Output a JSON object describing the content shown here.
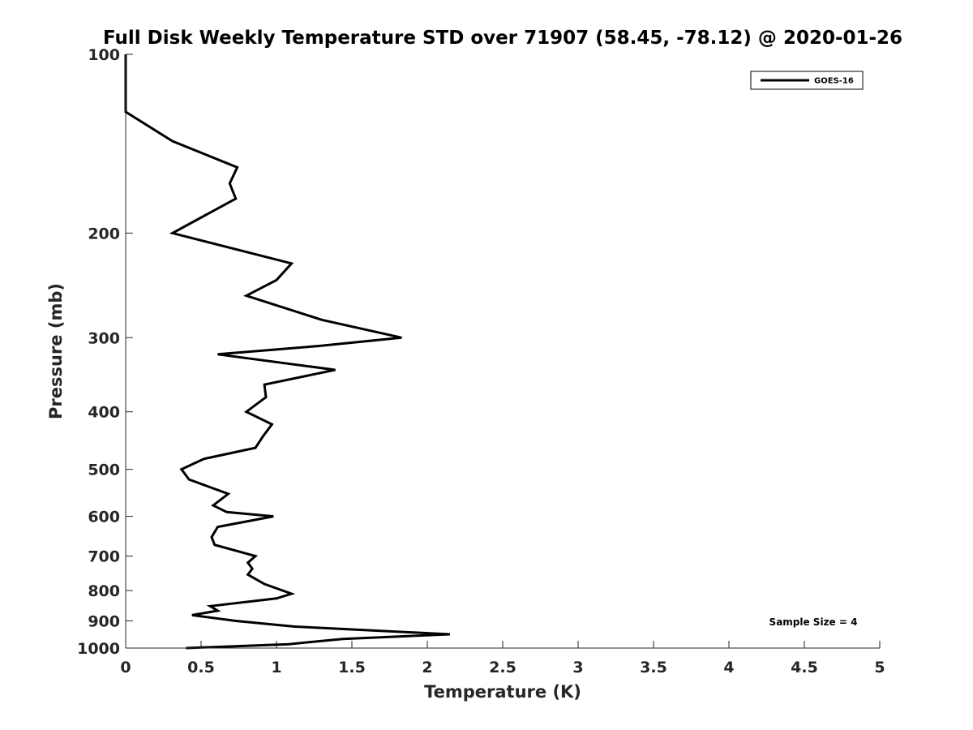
{
  "chart_data": {
    "type": "line",
    "title": "Full Disk Weekly Temperature STD over 71907 (58.45, -78.12) @ 2020-01-26",
    "xlabel": "Temperature (K)",
    "ylabel": "Pressure (mb)",
    "xlim": [
      0,
      5
    ],
    "ylim": [
      100,
      1000
    ],
    "y_scale": "log",
    "y_reversed": true,
    "x_ticks": [
      0,
      0.5,
      1,
      1.5,
      2,
      2.5,
      3,
      3.5,
      4,
      4.5,
      5
    ],
    "x_tick_labels": [
      "0",
      "0.5",
      "1",
      "1.5",
      "2",
      "2.5",
      "3",
      "3.5",
      "4",
      "4.5",
      "5"
    ],
    "y_ticks": [
      100,
      200,
      300,
      400,
      500,
      600,
      700,
      800,
      900,
      1000
    ],
    "y_tick_labels": [
      "100",
      "200",
      "300",
      "400",
      "500",
      "600",
      "700",
      "800",
      "900",
      "1000"
    ],
    "grid": false,
    "legend_position": "top-right",
    "series": [
      {
        "name": "GOES-16",
        "color": "#000000",
        "x": [
          0.0,
          0.0,
          0.0,
          0.31,
          0.74,
          0.69,
          0.73,
          0.31,
          1.1,
          1.0,
          0.8,
          1.3,
          1.83,
          1.27,
          0.61,
          1.39,
          0.92,
          0.93,
          0.8,
          0.97,
          0.91,
          0.86,
          0.52,
          0.37,
          0.42,
          0.68,
          0.58,
          0.67,
          0.98,
          0.61,
          0.57,
          0.59,
          0.86,
          0.81,
          0.84,
          0.81,
          0.92,
          1.1,
          1.0,
          0.56,
          0.61,
          0.44,
          0.73,
          1.12,
          2.15,
          1.44,
          1.08,
          0.4
        ],
        "y": [
          100,
          110,
          125,
          140,
          155,
          165,
          175,
          200,
          225,
          240,
          255,
          280,
          300,
          310,
          320,
          340,
          360,
          378,
          400,
          420,
          440,
          460,
          480,
          500,
          520,
          550,
          575,
          590,
          600,
          625,
          650,
          670,
          700,
          718,
          735,
          752,
          780,
          810,
          825,
          850,
          865,
          880,
          900,
          920,
          948,
          965,
          985,
          1000
        ]
      }
    ],
    "annotation": "Sample Size = 4"
  }
}
